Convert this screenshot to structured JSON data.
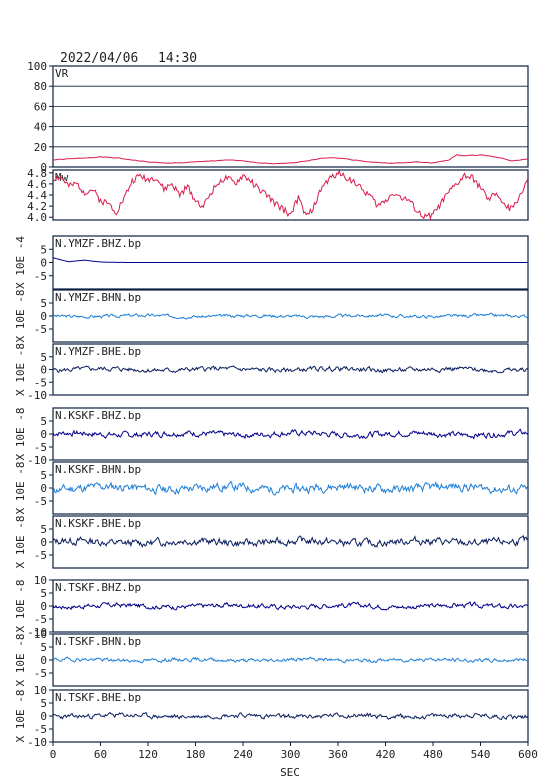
{
  "header": {
    "date": "2022/04/06",
    "time": "14:30"
  },
  "colors": {
    "frame": "#0a1f3f",
    "vr": "#d81b4b",
    "mw": "#d81b4b",
    "bhz": "#00008b",
    "bhn": "#1e7fd8",
    "bhe": "#0b1f5e",
    "grid": "#0a1f3f",
    "text": "#222222"
  },
  "chart_data": {
    "type": "line",
    "xlabel": "SEC",
    "xlim": [
      0,
      600
    ],
    "xticks": [
      "0",
      "60",
      "120",
      "180",
      "240",
      "300",
      "360",
      "420",
      "480",
      "540",
      "600"
    ],
    "panels": [
      {
        "name": "VR",
        "ylim": [
          0,
          100
        ],
        "yticks": [
          "100",
          "80",
          "60",
          "40",
          "20",
          "0"
        ],
        "ylabel": "",
        "gridlines": true,
        "series": [
          {
            "x": [
              0,
              20,
              40,
              60,
              80,
              100,
              120,
              140,
              160,
              180,
              200,
              220,
              240,
              260,
              280,
              300,
              320,
              340,
              360,
              380,
              400,
              420,
              440,
              460,
              480,
              500,
              510,
              520,
              540,
              560,
              580,
              600
            ],
            "y": [
              7,
              8,
              9,
              10,
              9,
              7,
              5,
              4,
              4,
              5,
              6,
              7,
              6,
              4,
              3,
              4,
              6,
              9,
              9,
              7,
              5,
              4,
              4,
              5,
              4,
              7,
              12,
              11,
              12,
              10,
              6,
              8
            ]
          }
        ]
      },
      {
        "name": "Mw",
        "ylim": [
          3.95,
          4.85
        ],
        "yticks": [
          "4.8",
          "4.6",
          "4.4",
          "4.2",
          "4.0"
        ],
        "ylabel": "",
        "gridlines": false,
        "series": [
          {
            "x": [
              0,
              10,
              20,
              30,
              40,
              50,
              60,
              70,
              80,
              90,
              100,
              110,
              120,
              130,
              140,
              150,
              160,
              170,
              180,
              190,
              200,
              210,
              220,
              230,
              240,
              250,
              260,
              270,
              280,
              290,
              300,
              310,
              320,
              330,
              340,
              350,
              360,
              370,
              380,
              390,
              400,
              410,
              420,
              430,
              440,
              450,
              460,
              470,
              480,
              490,
              500,
              510,
              520,
              530,
              540,
              550,
              560,
              570,
              580,
              590,
              600
            ],
            "y": [
              4.7,
              4.72,
              4.55,
              4.6,
              4.45,
              4.5,
              4.3,
              4.25,
              4.1,
              4.35,
              4.65,
              4.75,
              4.68,
              4.72,
              4.5,
              4.6,
              4.4,
              4.55,
              4.3,
              4.2,
              4.45,
              4.65,
              4.7,
              4.6,
              4.75,
              4.65,
              4.5,
              4.4,
              4.25,
              4.15,
              4.05,
              4.35,
              4.0,
              4.2,
              4.55,
              4.7,
              4.8,
              4.72,
              4.65,
              4.5,
              4.4,
              4.2,
              4.3,
              4.45,
              4.35,
              4.3,
              4.1,
              4.0,
              4.05,
              4.25,
              4.45,
              4.6,
              4.75,
              4.7,
              4.55,
              4.3,
              4.45,
              4.2,
              4.15,
              4.4,
              4.7
            ]
          }
        ]
      },
      {
        "name": "N.YMZF.BHZ.bp",
        "ylim": [
          -10,
          10
        ],
        "yticks": [
          "5",
          "0",
          "-5"
        ],
        "ylabel": "X 10E -4",
        "gridlines": false,
        "series": [
          {
            "x": [
              0,
              10,
              20,
              30,
              40,
              50,
              60,
              70,
              80,
              90,
              100,
              150,
              200,
              300,
              400,
              500,
              600
            ],
            "y": [
              1.8,
              1.0,
              0.3,
              0.6,
              0.9,
              0.5,
              0.2,
              0.1,
              0.05,
              0.02,
              0,
              0,
              0,
              0,
              0,
              0,
              0
            ]
          }
        ]
      },
      {
        "name": "N.YMZF.BHN.bp",
        "ylim": [
          -10,
          10
        ],
        "yticks": [
          "5",
          "0",
          "-5"
        ],
        "ylabel": "X 10E -8",
        "gridlines": false,
        "seed": 3,
        "amp": 0.6
      },
      {
        "name": "N.YMZF.BHE.bp",
        "ylim": [
          -10,
          10
        ],
        "yticks": [
          "5",
          "0",
          "-5",
          "-10"
        ],
        "ylabel": "X 10E -8",
        "gridlines": false,
        "seed": 5,
        "amp": 0.9
      },
      {
        "name": "N.KSKF.BHZ.bp",
        "ylim": [
          -10,
          10
        ],
        "yticks": [
          "5",
          "0",
          "-5",
          "-10"
        ],
        "ylabel": "X 10E -8",
        "gridlines": false,
        "seed": 7,
        "amp": 1.1
      },
      {
        "name": "N.KSKF.BHN.bp",
        "ylim": [
          -10,
          10
        ],
        "yticks": [
          "5",
          "0",
          "-5"
        ],
        "ylabel": "X 10E -8",
        "gridlines": false,
        "seed": 11,
        "amp": 1.6
      },
      {
        "name": "N.KSKF.BHE.bp",
        "ylim": [
          -10,
          10
        ],
        "yticks": [
          "5",
          "0",
          "-5"
        ],
        "ylabel": "X 10E -8",
        "gridlines": false,
        "seed": 13,
        "amp": 1.4
      },
      {
        "name": "N.TSKF.BHZ.bp",
        "ylim": [
          -10,
          10
        ],
        "yticks": [
          "10",
          "5",
          "0",
          "-5",
          "-10"
        ],
        "ylabel": "X 10E -8",
        "gridlines": false,
        "seed": 17,
        "amp": 0.9
      },
      {
        "name": "N.TSKF.BHN.bp",
        "ylim": [
          -10,
          10
        ],
        "yticks": [
          "10",
          "5",
          "0",
          "-5"
        ],
        "ylabel": "X 10E -8",
        "gridlines": false,
        "seed": 19,
        "amp": 0.7
      },
      {
        "name": "N.TSKF.BHE.bp",
        "ylim": [
          -10,
          10
        ],
        "yticks": [
          "10",
          "5",
          "0",
          "-5",
          "-10"
        ],
        "ylabel": "X 10E -8",
        "gridlines": false,
        "seed": 23,
        "amp": 0.9
      }
    ]
  }
}
